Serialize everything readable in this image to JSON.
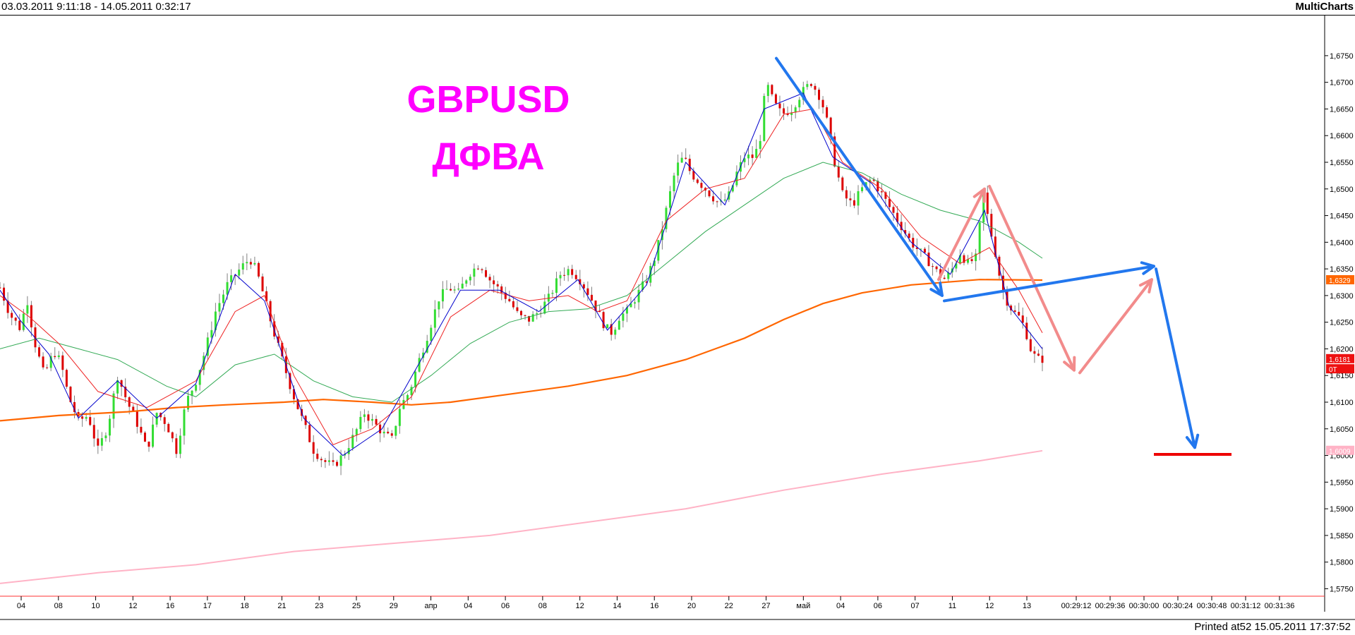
{
  "header": {
    "date_range": "03.03.2011 9:11:18 - 14.05.2011 0:32:17",
    "brand": "MultiCharts"
  },
  "footer": {
    "printed": "Printed at52 15.05.2011 17:37:52"
  },
  "chart_data": {
    "type": "candlestick",
    "title": "GBPUSD",
    "subtitle": "ДФВА",
    "colors": {
      "up": "#33dd33",
      "down": "#dd0000",
      "wick": "#808080",
      "ma_fast": "#0000cc",
      "ma_mid": "#ee2222",
      "ma_slow": "#33aa55",
      "ma_orange": "#ff6600",
      "ma_pink": "#ffb3c6",
      "arrow_blue": "#2277ee",
      "arrow_pink": "#f28b8b",
      "target_line": "#ee0000",
      "title": "#ff00ff"
    },
    "y_axis": {
      "ylim": [
        1.574,
        1.6775
      ],
      "ticks": [
        "1,6750",
        "1,6700",
        "1,6650",
        "1,6600",
        "1,6550",
        "1,6500",
        "1,6450",
        "1,6400",
        "1,6350",
        "1,6300",
        "1,6250",
        "1,6200",
        "1,6150",
        "1,6100",
        "1,6050",
        "1,6000",
        "1,5950",
        "1,5900",
        "1,5850",
        "1,5800",
        "1,5750"
      ],
      "badges": [
        {
          "label": "1,6329",
          "value": 1.6329,
          "color": "#ff6600"
        },
        {
          "label": "1,6181",
          "value": 1.6181,
          "color": "#ee1111"
        },
        {
          "label": "0T",
          "value": 1.6162,
          "color": "#ee1111"
        },
        {
          "label": "1,6009",
          "value": 1.6009,
          "color": "#ffb3c6"
        }
      ]
    },
    "x_labels": [
      "04",
      "08",
      "10",
      "12",
      "16",
      "17",
      "18",
      "21",
      "23",
      "25",
      "29",
      "апр",
      "04",
      "06",
      "08",
      "12",
      "14",
      "16",
      "20",
      "22",
      "27",
      "май",
      "04",
      "06",
      "07",
      "11",
      "12",
      "13",
      "00:29:12",
      "00:29:36",
      "00:30:00",
      "00:30:24",
      "00:30:48",
      "00:31:12",
      "00:31:36"
    ],
    "price_anchors": [
      [
        0,
        1.6315
      ],
      [
        10,
        1.6265
      ],
      [
        20,
        1.624
      ],
      [
        28,
        1.629
      ],
      [
        35,
        1.6215
      ],
      [
        45,
        1.615
      ],
      [
        55,
        1.6195
      ],
      [
        62,
        1.6175
      ],
      [
        70,
        1.611
      ],
      [
        80,
        1.6065
      ],
      [
        90,
        1.6075
      ],
      [
        100,
        1.601
      ],
      [
        110,
        1.6055
      ],
      [
        120,
        1.615
      ],
      [
        130,
        1.61
      ],
      [
        140,
        1.606
      ],
      [
        150,
        1.601
      ],
      [
        160,
        1.608
      ],
      [
        170,
        1.606
      ],
      [
        180,
        1.601
      ],
      [
        190,
        1.61
      ],
      [
        200,
        1.614
      ],
      [
        210,
        1.62
      ],
      [
        220,
        1.627
      ],
      [
        232,
        1.632
      ],
      [
        245,
        1.635
      ],
      [
        255,
        1.637
      ],
      [
        262,
        1.6345
      ],
      [
        270,
        1.6295
      ],
      [
        278,
        1.624
      ],
      [
        288,
        1.618
      ],
      [
        298,
        1.612
      ],
      [
        310,
        1.606
      ],
      [
        320,
        1.601
      ],
      [
        330,
        1.599
      ],
      [
        340,
        1.598
      ],
      [
        350,
        1.6
      ],
      [
        362,
        1.604
      ],
      [
        372,
        1.608
      ],
      [
        382,
        1.606
      ],
      [
        392,
        1.604
      ],
      [
        400,
        1.603
      ],
      [
        408,
        1.609
      ],
      [
        418,
        1.612
      ],
      [
        428,
        1.618
      ],
      [
        438,
        1.6235
      ],
      [
        448,
        1.6295
      ],
      [
        458,
        1.6315
      ],
      [
        468,
        1.6305
      ],
      [
        478,
        1.634
      ],
      [
        490,
        1.636
      ],
      [
        500,
        1.633
      ],
      [
        510,
        1.631
      ],
      [
        520,
        1.629
      ],
      [
        530,
        1.626
      ],
      [
        540,
        1.6255
      ],
      [
        550,
        1.627
      ],
      [
        560,
        1.6295
      ],
      [
        572,
        1.634
      ],
      [
        582,
        1.635
      ],
      [
        592,
        1.633
      ],
      [
        602,
        1.63
      ],
      [
        610,
        1.627
      ],
      [
        618,
        1.624
      ],
      [
        625,
        1.623
      ],
      [
        632,
        1.626
      ],
      [
        640,
        1.627
      ],
      [
        650,
        1.63
      ],
      [
        660,
        1.633
      ],
      [
        670,
        1.638
      ],
      [
        680,
        1.646
      ],
      [
        690,
        1.654
      ],
      [
        698,
        1.656
      ],
      [
        705,
        1.653
      ],
      [
        715,
        1.651
      ],
      [
        725,
        1.649
      ],
      [
        735,
        1.647
      ],
      [
        745,
        1.649
      ],
      [
        752,
        1.653
      ],
      [
        760,
        1.656
      ],
      [
        768,
        1.656
      ],
      [
        775,
        1.658
      ],
      [
        782,
        1.67
      ],
      [
        790,
        1.666
      ],
      [
        798,
        1.664
      ],
      [
        808,
        1.665
      ],
      [
        818,
        1.668
      ],
      [
        828,
        1.67
      ],
      [
        838,
        1.667
      ],
      [
        845,
        1.662
      ],
      [
        852,
        1.655
      ],
      [
        860,
        1.649
      ],
      [
        870,
        1.647
      ],
      [
        880,
        1.65
      ],
      [
        890,
        1.652
      ],
      [
        900,
        1.649
      ],
      [
        910,
        1.646
      ],
      [
        920,
        1.643
      ],
      [
        930,
        1.64
      ],
      [
        940,
        1.638
      ],
      [
        950,
        1.636
      ],
      [
        958,
        1.634
      ],
      [
        965,
        1.633
      ],
      [
        972,
        1.635
      ],
      [
        980,
        1.638
      ],
      [
        988,
        1.636
      ],
      [
        996,
        1.637
      ],
      [
        1004,
        1.649
      ],
      [
        1010,
        1.643
      ],
      [
        1016,
        1.638
      ],
      [
        1022,
        1.632
      ],
      [
        1028,
        1.629
      ],
      [
        1034,
        1.627
      ],
      [
        1040,
        1.626
      ],
      [
        1046,
        1.624
      ],
      [
        1052,
        1.62
      ],
      [
        1058,
        1.618
      ],
      [
        1064,
        1.6181
      ]
    ],
    "moving_averages": [
      {
        "color_key": "ma_orange",
        "width": 2.2,
        "points": [
          [
            0,
            1.6065
          ],
          [
            60,
            1.6075
          ],
          [
            130,
            1.6082
          ],
          [
            180,
            1.609
          ],
          [
            230,
            1.6095
          ],
          [
            290,
            1.61
          ],
          [
            330,
            1.6105
          ],
          [
            380,
            1.61
          ],
          [
            420,
            1.6095
          ],
          [
            460,
            1.61
          ],
          [
            520,
            1.6115
          ],
          [
            580,
            1.613
          ],
          [
            640,
            1.615
          ],
          [
            700,
            1.618
          ],
          [
            760,
            1.622
          ],
          [
            800,
            1.6255
          ],
          [
            840,
            1.6285
          ],
          [
            880,
            1.6305
          ],
          [
            930,
            1.632
          ],
          [
            1000,
            1.633
          ],
          [
            1064,
            1.6329
          ]
        ]
      },
      {
        "color_key": "ma_pink",
        "width": 2,
        "points": [
          [
            0,
            1.576
          ],
          [
            100,
            1.578
          ],
          [
            200,
            1.5795
          ],
          [
            300,
            1.582
          ],
          [
            400,
            1.5835
          ],
          [
            500,
            1.585
          ],
          [
            600,
            1.5875
          ],
          [
            700,
            1.59
          ],
          [
            800,
            1.5935
          ],
          [
            900,
            1.5965
          ],
          [
            1000,
            1.599
          ],
          [
            1064,
            1.6009
          ]
        ]
      },
      {
        "color_key": "ma_slow",
        "width": 1,
        "points": [
          [
            0,
            1.62
          ],
          [
            40,
            1.622
          ],
          [
            80,
            1.62
          ],
          [
            120,
            1.618
          ],
          [
            170,
            1.613
          ],
          [
            200,
            1.611
          ],
          [
            240,
            1.617
          ],
          [
            280,
            1.619
          ],
          [
            320,
            1.614
          ],
          [
            360,
            1.611
          ],
          [
            400,
            1.61
          ],
          [
            440,
            1.615
          ],
          [
            480,
            1.621
          ],
          [
            520,
            1.625
          ],
          [
            560,
            1.627
          ],
          [
            600,
            1.6275
          ],
          [
            640,
            1.63
          ],
          [
            680,
            1.636
          ],
          [
            720,
            1.642
          ],
          [
            760,
            1.647
          ],
          [
            800,
            1.652
          ],
          [
            840,
            1.655
          ],
          [
            880,
            1.653
          ],
          [
            920,
            1.649
          ],
          [
            960,
            1.646
          ],
          [
            1000,
            1.644
          ],
          [
            1040,
            1.64
          ],
          [
            1064,
            1.637
          ]
        ]
      },
      {
        "color_key": "ma_mid",
        "width": 1,
        "points": [
          [
            0,
            1.63
          ],
          [
            30,
            1.626
          ],
          [
            60,
            1.621
          ],
          [
            100,
            1.612
          ],
          [
            150,
            1.609
          ],
          [
            200,
            1.614
          ],
          [
            240,
            1.627
          ],
          [
            270,
            1.63
          ],
          [
            300,
            1.615
          ],
          [
            340,
            1.602
          ],
          [
            380,
            1.605
          ],
          [
            420,
            1.611
          ],
          [
            460,
            1.626
          ],
          [
            500,
            1.631
          ],
          [
            540,
            1.629
          ],
          [
            580,
            1.63
          ],
          [
            610,
            1.627
          ],
          [
            640,
            1.629
          ],
          [
            680,
            1.644
          ],
          [
            720,
            1.65
          ],
          [
            760,
            1.652
          ],
          [
            800,
            1.664
          ],
          [
            830,
            1.665
          ],
          [
            860,
            1.655
          ],
          [
            900,
            1.65
          ],
          [
            940,
            1.641
          ],
          [
            980,
            1.636
          ],
          [
            1010,
            1.639
          ],
          [
            1040,
            1.631
          ],
          [
            1064,
            1.623
          ]
        ]
      },
      {
        "color_key": "ma_fast",
        "width": 1,
        "points": [
          [
            0,
            1.631
          ],
          [
            20,
            1.6255
          ],
          [
            50,
            1.619
          ],
          [
            80,
            1.607
          ],
          [
            120,
            1.614
          ],
          [
            160,
            1.607
          ],
          [
            200,
            1.6135
          ],
          [
            240,
            1.634
          ],
          [
            270,
            1.629
          ],
          [
            310,
            1.607
          ],
          [
            350,
            1.6
          ],
          [
            390,
            1.605
          ],
          [
            430,
            1.618
          ],
          [
            470,
            1.631
          ],
          [
            510,
            1.631
          ],
          [
            550,
            1.627
          ],
          [
            590,
            1.633
          ],
          [
            620,
            1.6235
          ],
          [
            660,
            1.632
          ],
          [
            700,
            1.655
          ],
          [
            740,
            1.647
          ],
          [
            780,
            1.665
          ],
          [
            820,
            1.668
          ],
          [
            850,
            1.656
          ],
          [
            890,
            1.651
          ],
          [
            930,
            1.64
          ],
          [
            970,
            1.634
          ],
          [
            1005,
            1.646
          ],
          [
            1030,
            1.628
          ],
          [
            1064,
            1.62
          ]
        ]
      }
    ],
    "annotations": {
      "arrows_blue": [
        [
          [
            1100,
            1.6745
          ],
          [
            1335,
            1.63
          ]
        ],
        [
          [
            1338,
            1.629
          ],
          [
            1635,
            1.6355
          ]
        ],
        [
          [
            1638,
            1.635
          ],
          [
            1693,
            1.6015
          ]
        ]
      ],
      "arrows_pink": [
        [
          [
            1330,
            1.633
          ],
          [
            1395,
            1.65
          ]
        ],
        [
          [
            1402,
            1.6505
          ],
          [
            1522,
            1.616
          ]
        ],
        [
          [
            1530,
            1.6155
          ],
          [
            1632,
            1.633
          ]
        ]
      ],
      "target_line": [
        [
          1635,
          1.6002
        ],
        [
          1745,
          1.6002
        ]
      ]
    }
  }
}
